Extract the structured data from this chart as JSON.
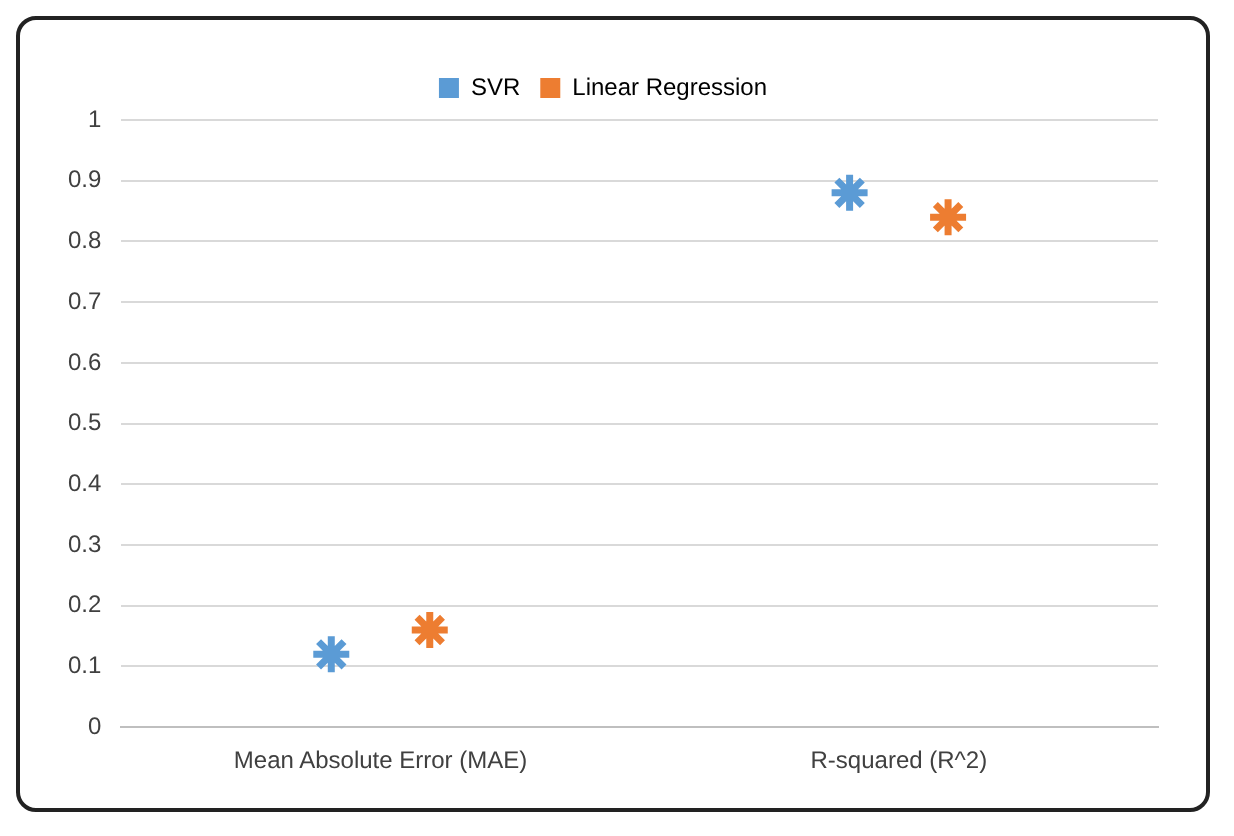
{
  "chart_data": {
    "type": "scatter",
    "categories": [
      "Mean Absolute Error (MAE)",
      "R-squared (R^2)"
    ],
    "series": [
      {
        "name": "SVR",
        "color": "#5b9bd5",
        "values": [
          0.12,
          0.88
        ]
      },
      {
        "name": "Linear Regression",
        "color": "#ed7d31",
        "values": [
          0.16,
          0.84
        ]
      }
    ],
    "ylim": [
      0,
      1
    ],
    "yticks": [
      0,
      0.1,
      0.2,
      0.3,
      0.4,
      0.5,
      0.6,
      0.7,
      0.8,
      0.9,
      1
    ],
    "grid": "y",
    "legend": "top",
    "marker": "cross"
  }
}
